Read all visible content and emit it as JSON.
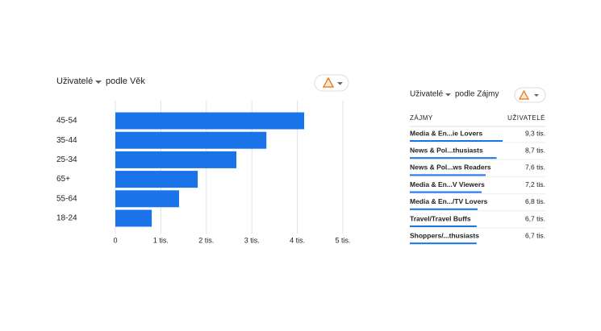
{
  "chart_data": {
    "type": "bar",
    "orientation": "horizontal",
    "title": "Uživatelé",
    "subtitle": "podle Věk",
    "categories": [
      "45-54",
      "35-44",
      "25-34",
      "65+",
      "55-64",
      "18-24"
    ],
    "values": [
      4150,
      3320,
      2660,
      1810,
      1400,
      800
    ],
    "color": "#1a73e8",
    "xlim": [
      0,
      5000
    ],
    "xticks": [
      0,
      {
        "value": 1000,
        "label": "1 tis."
      },
      {
        "value": 2000,
        "label": "2 tis."
      },
      {
        "value": 3000,
        "label": "3 tis."
      },
      {
        "value": 4000,
        "label": "4 tis."
      },
      {
        "value": 5000,
        "label": "5 tis."
      }
    ],
    "grid": true
  },
  "table": {
    "title": "Uživatelé",
    "subtitle": "podle Zájmy",
    "columns": [
      "ZÁJMY",
      "UŽIVATELÉ"
    ],
    "rows": [
      [
        "Media & En...ie Lovers",
        "9,3 tis."
      ],
      [
        "News & Pol...thusiasts",
        "8,7 tis."
      ],
      [
        "News & Pol...ws Readers",
        "7,6 tis."
      ],
      [
        "Media & En...V Viewers",
        "7,2 tis."
      ],
      [
        "Media & En.../TV Lovers",
        "6,8 tis."
      ],
      [
        "Travel/Travel Buffs",
        "6,7 tis."
      ],
      [
        "Shoppers/...thusiasts",
        "6,7 tis."
      ]
    ],
    "values": [
      9300,
      8700,
      7600,
      7200,
      6800,
      6700,
      6700
    ],
    "color": "#1a73e8"
  }
}
